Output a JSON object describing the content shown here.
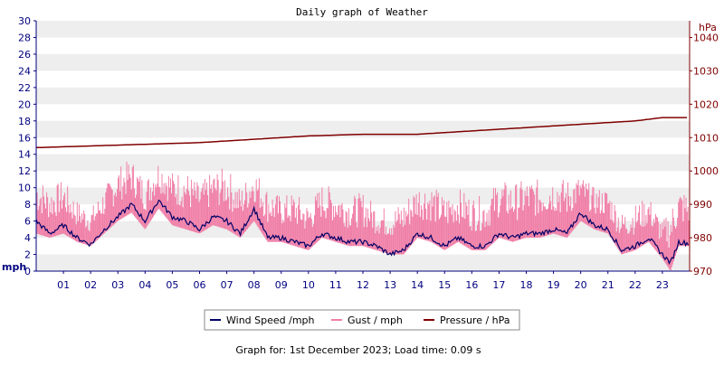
{
  "chart_data": {
    "type": "line",
    "title": "Daily graph of Weather",
    "footer": "Graph for: 1st December 2023; Load time: 0.09 s",
    "x_ticks": [
      "01",
      "02",
      "03",
      "04",
      "05",
      "06",
      "07",
      "08",
      "09",
      "10",
      "11",
      "12",
      "13",
      "14",
      "15",
      "16",
      "17",
      "18",
      "19",
      "20",
      "21",
      "22",
      "23"
    ],
    "x_range_hours": [
      0,
      24
    ],
    "left_axis": {
      "unit": "mph",
      "ylim": [
        0,
        30
      ],
      "ticks": [
        "0",
        "2",
        "4",
        "6",
        "8",
        "10",
        "12",
        "14",
        "16",
        "18",
        "20",
        "22",
        "24",
        "26",
        "28",
        "30"
      ]
    },
    "right_axis": {
      "unit": "hPa",
      "ylim": [
        970,
        1045
      ],
      "ticks": [
        "970",
        "980",
        "990",
        "1000",
        "1010",
        "1020",
        "1030",
        "1040"
      ]
    },
    "grid": "horizontal bands",
    "colors": {
      "wind": "#000066",
      "gust": "#f080a8",
      "pressure": "#800000",
      "band": "#eeeeee",
      "left_axis": "#000080",
      "right_axis": "#800000"
    },
    "series": [
      {
        "name": "Wind Speed /mph",
        "axis": "left",
        "key": "wind",
        "x": [
          0,
          0.5,
          1,
          1.5,
          2,
          2.5,
          3,
          3.5,
          4,
          4.5,
          5,
          5.5,
          6,
          6.5,
          7,
          7.5,
          8,
          8.5,
          9,
          9.5,
          10,
          10.5,
          11,
          11.5,
          12,
          12.5,
          13,
          13.5,
          14,
          14.5,
          15,
          15.5,
          16,
          16.5,
          17,
          17.5,
          18,
          18.5,
          19,
          19.5,
          20,
          20.5,
          21,
          21.5,
          22,
          22.5,
          23,
          23.3,
          23.6,
          24
        ],
        "y": [
          6,
          4.5,
          5.5,
          4,
          3.2,
          5,
          6.5,
          8,
          6,
          8.5,
          6.5,
          6,
          5,
          6.5,
          6,
          4.5,
          7.5,
          4,
          4,
          3.5,
          3,
          4.5,
          4,
          3.5,
          3.5,
          3,
          2,
          2.5,
          4.5,
          4,
          3,
          4,
          3,
          3,
          4.5,
          4,
          4.5,
          4.5,
          5,
          4.5,
          7,
          5.5,
          5,
          2.5,
          3,
          4,
          2,
          1,
          3.5,
          3.3
        ]
      },
      {
        "name": "Gust / mph",
        "axis": "left",
        "key": "gust",
        "x": [
          0,
          0.5,
          1,
          1.5,
          2,
          2.5,
          3,
          3.5,
          4,
          4.5,
          5,
          5.5,
          6,
          6.5,
          7,
          7.5,
          8,
          8.5,
          9,
          9.5,
          10,
          10.5,
          11,
          11.5,
          12,
          12.5,
          13,
          13.5,
          14,
          14.5,
          15,
          15.5,
          16,
          16.5,
          17,
          17.5,
          18,
          18.5,
          19,
          19.5,
          20,
          20.5,
          21,
          21.5,
          22,
          22.5,
          23,
          23.3,
          23.6,
          24
        ],
        "low": [
          4.5,
          4,
          4.5,
          3.5,
          3,
          4.5,
          6,
          7,
          5,
          7.5,
          5.5,
          5,
          4.5,
          5.5,
          5,
          4,
          6,
          3.5,
          3.5,
          3,
          2.5,
          4,
          3.5,
          3,
          3,
          2.5,
          2,
          2,
          4,
          3.5,
          2.5,
          3.5,
          2.5,
          2.5,
          4,
          3.5,
          4,
          4,
          4.5,
          4,
          6,
          5,
          4.5,
          2,
          2.5,
          3.5,
          1.5,
          0,
          3,
          3
        ],
        "high": [
          11.5,
          10,
          11,
          8.5,
          7.5,
          10,
          12.5,
          13.5,
          11,
          13.5,
          12,
          12,
          10.5,
          12,
          12.5,
          10,
          12.5,
          10,
          9,
          9.5,
          8,
          10.5,
          10,
          9,
          9.5,
          8,
          7.5,
          8.5,
          10.5,
          10.5,
          9,
          10,
          9,
          9,
          11,
          10.5,
          11,
          11,
          11.5,
          11,
          11.5,
          10,
          10,
          7,
          8,
          9,
          6,
          7.5,
          10,
          9.5
        ]
      },
      {
        "name": "Pressure / hPa",
        "axis": "right",
        "key": "pressure",
        "x": [
          0,
          2,
          4,
          6,
          8,
          10,
          12,
          14,
          15,
          16,
          17,
          18,
          19,
          20,
          21,
          22,
          23,
          24
        ],
        "y": [
          1007,
          1007.5,
          1008,
          1008.5,
          1009.5,
          1010.5,
          1011,
          1011,
          1011.5,
          1012,
          1012.5,
          1013,
          1013.5,
          1014,
          1014.5,
          1015,
          1016,
          1016
        ]
      }
    ]
  }
}
